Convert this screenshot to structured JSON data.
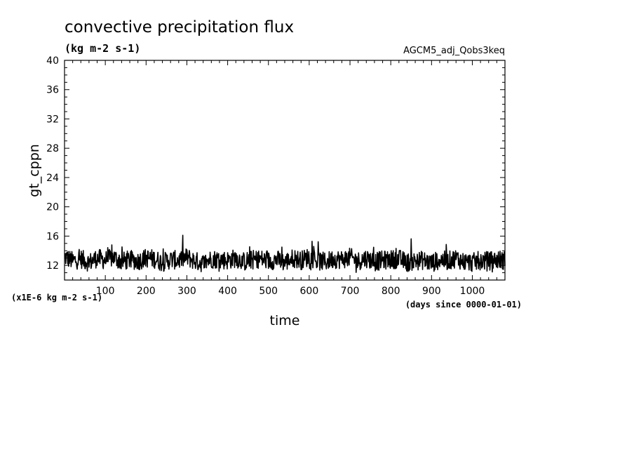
{
  "chart_data": {
    "type": "line",
    "title": "convective precipitation flux",
    "subtitle": "(kg m-2 s-1)",
    "run_label": "AGCM5_adj_Qobs3keq",
    "xlabel": "time",
    "x_units_label": "(days since 0000-01-01)",
    "ylabel": "gt_cppn",
    "y_scale_label": "(x1E-6 kg m-2 s-1)",
    "xlim": [
      0,
      1080
    ],
    "ylim": [
      10,
      40
    ],
    "x_ticks": [
      100,
      200,
      300,
      400,
      500,
      600,
      700,
      800,
      900,
      1000
    ],
    "y_ticks": [
      12,
      16,
      20,
      24,
      28,
      32,
      36,
      40
    ],
    "grid": false,
    "legend": "none",
    "series": [
      {
        "color": "#000000",
        "x": [
          0,
          20,
          40,
          60,
          80,
          100,
          120,
          140,
          160,
          180,
          200,
          220,
          240,
          260,
          280,
          300,
          320,
          340,
          360,
          380,
          400,
          420,
          440,
          460,
          480,
          500,
          520,
          540,
          560,
          580,
          600,
          620,
          640,
          660,
          680,
          700,
          720,
          740,
          760,
          780,
          800,
          820,
          840,
          860,
          880,
          900,
          920,
          940,
          960,
          980,
          1000,
          1020,
          1040,
          1060,
          1080
        ],
        "y": [
          13.2,
          12.6,
          12.9,
          12.4,
          13.0,
          12.7,
          13.1,
          12.5,
          12.8,
          12.6,
          13.0,
          12.9,
          12.4,
          12.8,
          12.7,
          13.1,
          12.6,
          12.3,
          12.9,
          12.8,
          12.7,
          13.0,
          12.5,
          12.8,
          12.9,
          12.6,
          12.8,
          12.4,
          13.0,
          12.7,
          13.2,
          12.6,
          12.5,
          12.9,
          12.8,
          13.1,
          12.6,
          13.0,
          12.5,
          12.7,
          12.8,
          12.9,
          12.4,
          12.6,
          12.7,
          12.3,
          12.8,
          12.6,
          13.0,
          12.5,
          12.4,
          12.7,
          12.6,
          12.8,
          12.7
        ]
      }
    ]
  }
}
